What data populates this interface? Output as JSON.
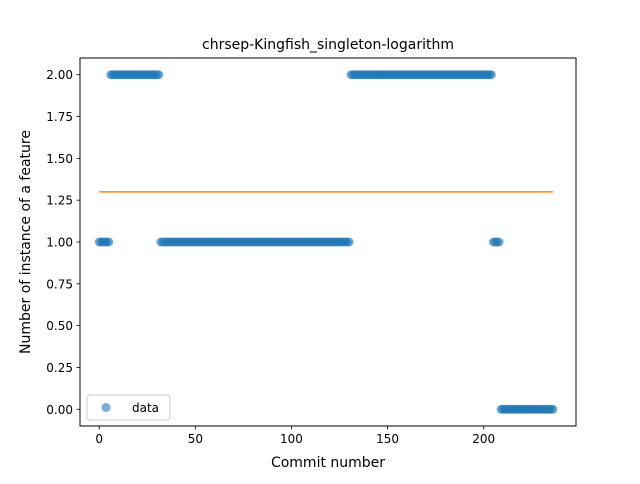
{
  "chart_data": {
    "type": "scatter",
    "title": "chrsep-Kingfish_singleton-logarithm",
    "xlabel": "Commit number",
    "ylabel": "Number of instance of a feature",
    "xlim": [
      -10,
      248
    ],
    "ylim": [
      -0.1,
      2.1
    ],
    "x_ticks": [
      0,
      50,
      100,
      150,
      200
    ],
    "x_tick_labels": [
      "0",
      "50",
      "100",
      "150",
      "200"
    ],
    "y_ticks": [
      0,
      0.25,
      0.5,
      0.75,
      1.0,
      1.25,
      1.5,
      1.75,
      2.0
    ],
    "y_tick_labels": [
      "0.00",
      "0.25",
      "0.50",
      "0.75",
      "1.00",
      "1.25",
      "1.50",
      "1.75",
      "2.00"
    ],
    "grid": false,
    "legend": {
      "placement": "lower-left",
      "entries": [
        "data"
      ]
    },
    "colors": {
      "data": "#1f77b4",
      "fit": "#ff7f0e"
    },
    "series": [
      {
        "name": "data",
        "kind": "points",
        "segments": [
          {
            "x_start": 0,
            "x_end": 5,
            "y": 1
          },
          {
            "x_start": 6,
            "x_end": 31,
            "y": 2
          },
          {
            "x_start": 32,
            "x_end": 130,
            "y": 1
          },
          {
            "x_start": 131,
            "x_end": 204,
            "y": 2
          },
          {
            "x_start": 205,
            "x_end": 208,
            "y": 1
          },
          {
            "x_start": 209,
            "x_end": 236,
            "y": 0
          }
        ]
      },
      {
        "kind": "line",
        "x": [
          0,
          236
        ],
        "y": [
          1.3,
          1.3
        ]
      }
    ]
  }
}
